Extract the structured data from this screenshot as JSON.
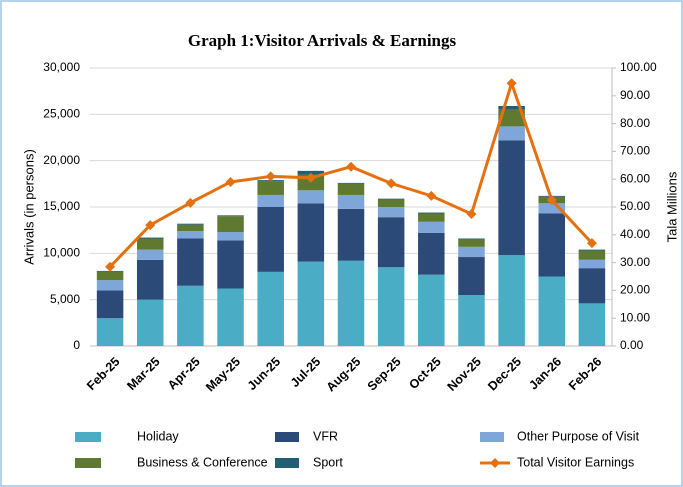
{
  "chart_data": {
    "type": "bar",
    "stacked": true,
    "title": "Graph 1:Visitor Arrivals  & Earnings",
    "y_label": "Arrivals (in persons)",
    "y2_label": "Tala Millions",
    "categories": [
      "Feb-25",
      "Mar-25",
      "Apr-25",
      "May-25",
      "Jun-25",
      "Jul-25",
      "Aug-25",
      "Sep-25",
      "Oct-25",
      "Nov-25",
      "Dec-25",
      "Jan-26",
      "Feb-26"
    ],
    "series": [
      {
        "name": "Holiday",
        "color": "#4bacc6",
        "values": [
          3000,
          5000,
          6500,
          6200,
          8000,
          9100,
          9200,
          8500,
          7700,
          5500,
          9800,
          7500,
          4600
        ]
      },
      {
        "name": "VFR",
        "color": "#2b4a78",
        "values": [
          3000,
          4300,
          5100,
          5200,
          7000,
          6300,
          5600,
          5400,
          4500,
          4100,
          12400,
          6800,
          3800
        ]
      },
      {
        "name": "Other Purpose of Visit",
        "color": "#7ea6d9",
        "values": [
          1100,
          1100,
          800,
          900,
          1300,
          1400,
          1500,
          1100,
          1200,
          1100,
          1500,
          1100,
          900
        ]
      },
      {
        "name": "Business & Conference",
        "color": "#5f7a30",
        "values": [
          900,
          1200,
          700,
          1700,
          1500,
          1700,
          1200,
          800,
          900,
          800,
          1800,
          700,
          1000
        ]
      },
      {
        "name": "Sport",
        "color": "#215f74",
        "values": [
          100,
          100,
          100,
          100,
          100,
          400,
          100,
          100,
          100,
          100,
          400,
          100,
          100
        ]
      },
      {
        "name": "Total Visitor Earnings",
        "color": "#e4700f",
        "type": "line",
        "axis": "y2",
        "values": [
          28.5,
          43.5,
          51.5,
          59,
          61,
          60.5,
          64.5,
          58.5,
          54,
          47.5,
          94.5,
          52.5,
          37
        ]
      }
    ],
    "ylim": [
      0,
      30000
    ],
    "yticks": [
      0,
      {
        "value": 5000,
        "label": "5,000"
      },
      {
        "value": 10000,
        "label": "10,000"
      },
      {
        "value": 15000,
        "label": "15,000"
      },
      {
        "value": 20000,
        "label": "20,000"
      },
      {
        "value": 25000,
        "label": "25,000"
      },
      {
        "value": 30000,
        "label": "30,000"
      }
    ],
    "y2lim": [
      0,
      100
    ],
    "y2ticks": [
      {
        "value": 0,
        "label": "0.00"
      },
      {
        "value": 10,
        "label": "10.00"
      },
      {
        "value": 20,
        "label": "20.00"
      },
      {
        "value": 30,
        "label": "30.00"
      },
      {
        "value": 40,
        "label": "40.00"
      },
      {
        "value": 50,
        "label": "50.00"
      },
      {
        "value": 60,
        "label": "60.00"
      },
      {
        "value": 70,
        "label": "70.00"
      },
      {
        "value": 80,
        "label": "80.00"
      },
      {
        "value": 90,
        "label": "90.00"
      },
      {
        "value": 100,
        "label": "100.00"
      }
    ],
    "grid": true,
    "legend": "bottom"
  }
}
